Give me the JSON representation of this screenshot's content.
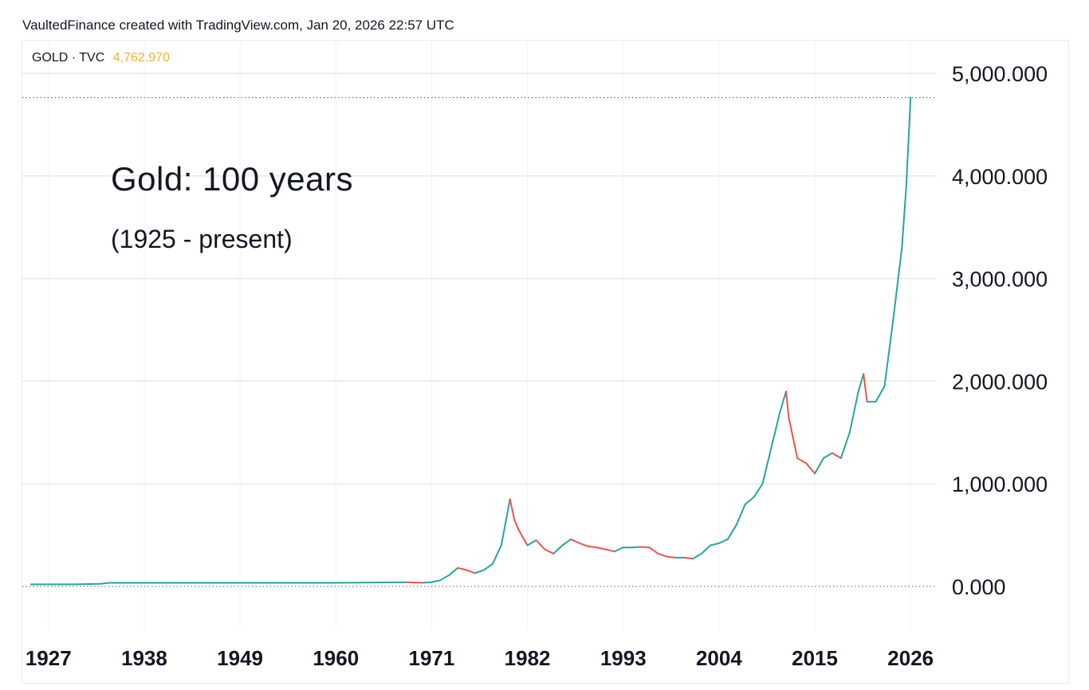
{
  "header": {
    "text": "VaultedFinance created with TradingView.com, Jan 20, 2026 22:57 UTC"
  },
  "symbol": {
    "name": "GOLD · TVC",
    "last_price": "4,762.970",
    "price_color": "#f0b429"
  },
  "annotation": {
    "title": "Gold: 100 years",
    "subtitle": "(1925 - present)"
  },
  "colors": {
    "up": "#26a69a",
    "down": "#ef5350",
    "grid": "#e6e8eb",
    "text": "#131722"
  },
  "chart_data": {
    "type": "line",
    "title": "",
    "xlabel": "",
    "ylabel": "",
    "xlim": [
      1924,
      2029
    ],
    "ylim": [
      -200,
      5150
    ],
    "y_ticks": [
      0,
      1000,
      2000,
      3000,
      4000,
      5000
    ],
    "y_tick_labels": [
      "0.000",
      "1,000.000",
      "2,000.000",
      "3,000.000",
      "4,000.000",
      "5,000.000"
    ],
    "x_ticks": [
      1927,
      1938,
      1949,
      1960,
      1971,
      1982,
      1993,
      2004,
      2015,
      2026
    ],
    "x_tick_labels": [
      "1927",
      "1938",
      "1949",
      "1960",
      "1971",
      "1982",
      "1993",
      "2004",
      "2015",
      "2026"
    ],
    "reference_lines": [
      4762.97,
      0
    ],
    "grid": true,
    "series": [
      {
        "x": [
          1925,
          1930,
          1933,
          1934,
          1940,
          1950,
          1960,
          1968,
          1970,
          1971,
          1972,
          1973,
          1974,
          1975,
          1976,
          1977,
          1978,
          1979,
          1980,
          1980.5,
          1981,
          1982,
          1983,
          1984,
          1985,
          1986,
          1987,
          1988,
          1989,
          1990,
          1991,
          1992,
          1993,
          1994,
          1995,
          1996,
          1997,
          1998,
          1999,
          2000,
          2001,
          2002,
          2003,
          2004,
          2005,
          2006,
          2007,
          2008,
          2009,
          2010,
          2011,
          2011.7,
          2012,
          2013,
          2014,
          2015,
          2016,
          2017,
          2018,
          2019,
          2020,
          2020.6,
          2021,
          2022,
          2023,
          2024,
          2025,
          2025.5,
          2026
        ],
        "y": [
          20,
          20,
          26,
          35,
          35,
          35,
          35,
          40,
          36,
          42,
          60,
          110,
          180,
          160,
          130,
          160,
          220,
          400,
          850,
          650,
          550,
          400,
          450,
          360,
          320,
          400,
          460,
          420,
          390,
          380,
          360,
          340,
          380,
          380,
          385,
          380,
          320,
          290,
          280,
          280,
          270,
          320,
          400,
          420,
          460,
          600,
          800,
          870,
          1000,
          1350,
          1700,
          1900,
          1650,
          1250,
          1200,
          1100,
          1250,
          1300,
          1250,
          1500,
          1900,
          2070,
          1800,
          1800,
          1950,
          2600,
          3300,
          3900,
          4762.97
        ]
      }
    ]
  }
}
